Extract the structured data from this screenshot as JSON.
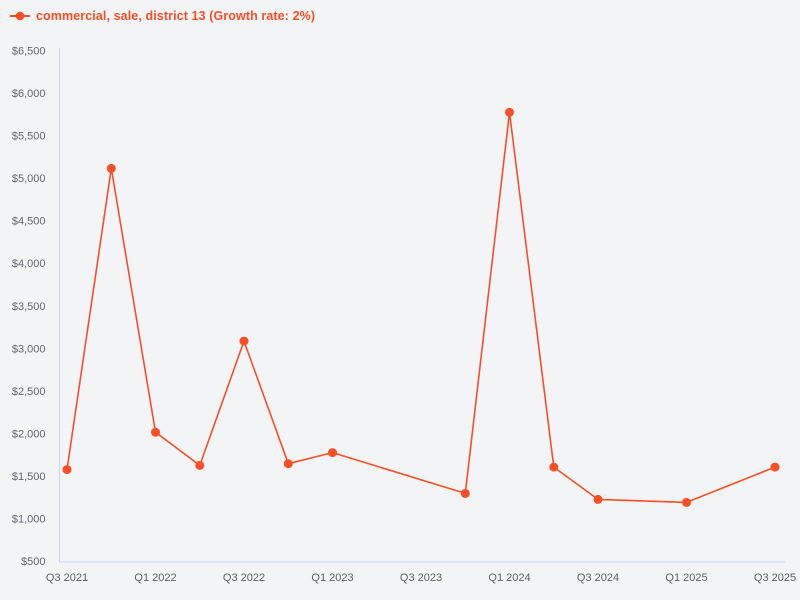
{
  "colors": {
    "background": "#f3f4f6",
    "axis_line": "#ccd3e8",
    "tick_label": "#63676d",
    "series": "#fa4f26"
  },
  "legend": {
    "position": "top-left"
  },
  "chart_data": {
    "type": "line",
    "title": "",
    "xlabel": "",
    "ylabel": "",
    "grid": false,
    "legend_position": "top-left",
    "ylim": [
      500,
      6500
    ],
    "ytick_step": 500,
    "yticks": [
      {
        "value": 500,
        "label": "$500"
      },
      {
        "value": 1000,
        "label": "$1,000"
      },
      {
        "value": 1500,
        "label": "$1,500"
      },
      {
        "value": 2000,
        "label": "$2,000"
      },
      {
        "value": 2500,
        "label": "$2,500"
      },
      {
        "value": 3000,
        "label": "$3,000"
      },
      {
        "value": 3500,
        "label": "$3,500"
      },
      {
        "value": 4000,
        "label": "$4,000"
      },
      {
        "value": 4500,
        "label": "$4,500"
      },
      {
        "value": 5000,
        "label": "$5,000"
      },
      {
        "value": 5500,
        "label": "$5,500"
      },
      {
        "value": 6000,
        "label": "$6,000"
      },
      {
        "value": 6500,
        "label": "$6,500"
      }
    ],
    "xticks": [
      {
        "q": 0,
        "label": "Q3 2021"
      },
      {
        "q": 2,
        "label": "Q1 2022"
      },
      {
        "q": 4,
        "label": "Q3 2022"
      },
      {
        "q": 6,
        "label": "Q1 2023"
      },
      {
        "q": 8,
        "label": "Q3 2023"
      },
      {
        "q": 10,
        "label": "Q1 2024"
      },
      {
        "q": 12,
        "label": "Q3 2024"
      },
      {
        "q": 14,
        "label": "Q1 2025"
      },
      {
        "q": 16,
        "label": "Q3 2025"
      }
    ],
    "series": [
      {
        "name": "commercial, sale, district 13 (Growth rate: 2%)",
        "color": "#fa4f26",
        "points": [
          {
            "q": 0,
            "quarter": "Q3 2021",
            "value": 1580
          },
          {
            "q": 1,
            "quarter": "Q4 2021",
            "value": 5120
          },
          {
            "q": 2,
            "quarter": "Q1 2022",
            "value": 2020
          },
          {
            "q": 3,
            "quarter": "Q2 2022",
            "value": 1630
          },
          {
            "q": 4,
            "quarter": "Q3 2022",
            "value": 3090
          },
          {
            "q": 5,
            "quarter": "Q4 2022",
            "value": 1650
          },
          {
            "q": 6,
            "quarter": "Q1 2023",
            "value": 1780
          },
          {
            "q": 9,
            "quarter": "Q4 2023",
            "value": 1300
          },
          {
            "q": 10,
            "quarter": "Q1 2024",
            "value": 5780
          },
          {
            "q": 11,
            "quarter": "Q2 2024",
            "value": 1610
          },
          {
            "q": 12,
            "quarter": "Q3 2024",
            "value": 1230
          },
          {
            "q": 14,
            "quarter": "Q1 2025",
            "value": 1195
          },
          {
            "q": 16,
            "quarter": "Q3 2025",
            "value": 1610
          }
        ]
      }
    ]
  }
}
